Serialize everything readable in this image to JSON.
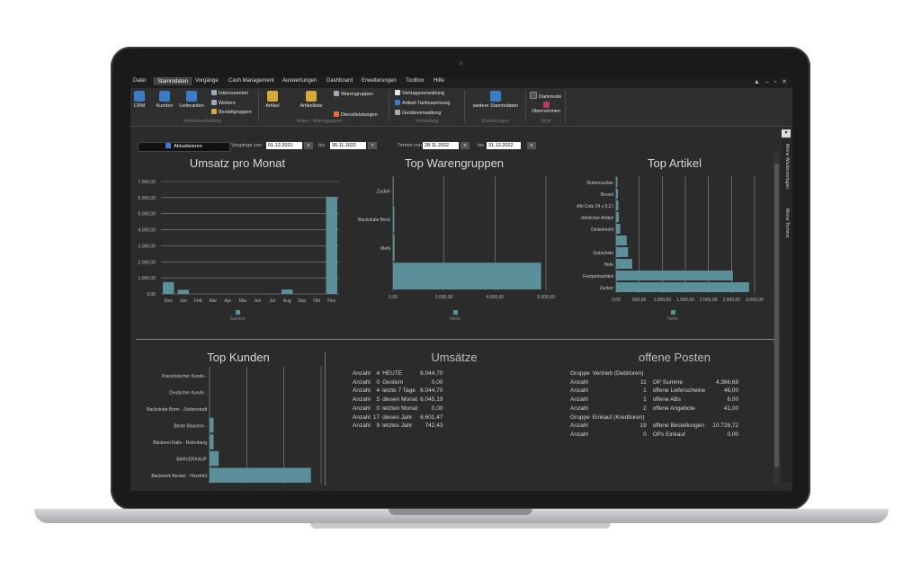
{
  "menu": {
    "items": [
      "Datei",
      "Stammdaten",
      "Vorgänge",
      "Cash Management",
      "Auswertungen",
      "Dashboard",
      "Erweiterungen",
      "Toolbox",
      "Hilfe"
    ],
    "active": "Stammdaten"
  },
  "ribbon": {
    "crm": "CRM",
    "kunden": "Kunden",
    "lieferanten": "Lieferanten",
    "interessenten": "Interessenten",
    "weitere": "Weitere",
    "bestellgruppen": "Bestellgruppen",
    "artikel": "Artikel",
    "artikelliste": "Artikelliste",
    "warengruppen": "Warengruppen",
    "dienstleistungen": "Dienstleistungen",
    "vertragsverwaltung": "Vertragsverwaltung",
    "artikel_tarifzuweisung": "Artikel-Tarifzuweisung",
    "geraeteverwaltung": "Geräteverwaltung",
    "weitere_stammdaten": "weitere Stammdaten",
    "darkmode": "Darkmode",
    "uebernehmen": "Übernehmen",
    "groups": {
      "adressbearbeitung": "Adressbearbeitung",
      "artikel_warengruppen": "Artikel / Warengruppen",
      "verwaltung": "Verwaltung",
      "einstellungen": "Einstellungen",
      "style": "Style"
    }
  },
  "toolbar": {
    "refresh": "Aktualisieren",
    "vorgaenge_von_label": "Vorgänge von",
    "vorgaenge_von": "01.12.2021",
    "bis1_label": "bis",
    "vorgaenge_bis": "30.11.2022",
    "termin_von_label": "Termin von",
    "termin_von": "28.11.2022",
    "bis2_label": "bis",
    "termin_bis": "31.12.2022"
  },
  "side_panel": {
    "tab1": "Meine Wiedervorlagen",
    "tab2": "Meine Termine"
  },
  "chart_data": [
    {
      "type": "bar",
      "title": "Umsatz pro Monat",
      "categories": [
        "Dez",
        "Jan",
        "Feb",
        "Mar",
        "Apr",
        "Mai",
        "Jun",
        "Jul",
        "Aug",
        "Sep",
        "Okt",
        "Nov"
      ],
      "series": [
        {
          "name": "Summe",
          "values": [
            740,
            260,
            0,
            0,
            0,
            0,
            0,
            15,
            280,
            0,
            0,
            6045
          ]
        }
      ],
      "yticks": [
        "0,00",
        "1.000,00",
        "2.000,00",
        "3.000,00",
        "4.000,00",
        "5.000,00",
        "6.000,00",
        "7.000,00"
      ],
      "ylim": [
        0,
        7000
      ],
      "grid": true,
      "legend": "bottom"
    },
    {
      "type": "bar",
      "orientation": "horizontal",
      "title": "Top Warengruppen",
      "categories": [
        "Zucker",
        "Backstube Beck",
        "Mehl",
        ""
      ],
      "series": [
        {
          "name": "Netto",
          "values": [
            30,
            60,
            70,
            6780
          ]
        }
      ],
      "xticks": [
        "0,00",
        "2.000,00",
        "4.000,00",
        "6.000,00"
      ],
      "xlim": [
        0,
        7000
      ],
      "grid": true,
      "legend": "bottom"
    },
    {
      "type": "bar",
      "orientation": "horizontal",
      "title": "Top Artikel",
      "categories": [
        "Rübenzucker",
        "Brezel",
        "Afri Cola 24 x 0,2 l",
        "Jährlicher Artikel",
        "Dinkelmehl",
        "",
        "Gutschein",
        "Hefe",
        "Festpreisartikel",
        "Zucker"
      ],
      "series": [
        {
          "name": "Netto",
          "values": [
            30,
            40,
            50,
            60,
            90,
            230,
            260,
            350,
            2530,
            2880
          ]
        }
      ],
      "xticks": [
        "0,00",
        "500,00",
        "1.000,00",
        "1.500,00",
        "2.000,00",
        "2.500,00",
        "3.000,00"
      ],
      "xlim": [
        0,
        3000
      ],
      "grid": true,
      "legend": "bottom"
    },
    {
      "type": "bar",
      "orientation": "horizontal",
      "title": "Top Kunden",
      "categories": [
        "Französischer Kunde -",
        "Deutscher Kunde -",
        "Backstube Bomi - Zahlenstadt",
        "Beste Bäckerei -",
        "Bäckerei Kalle - Rotenberg",
        "BARVERKAUF",
        "Backwerk Becker - Herzfeld"
      ],
      "series": [
        {
          "values": [
            0,
            0,
            0,
            40,
            40,
            90,
            1000
          ]
        }
      ],
      "xlim": [
        0,
        1100
      ],
      "grid": true
    }
  ],
  "umsaetze": {
    "title": "Umsätze",
    "rows": [
      {
        "label": "Anzahl",
        "count": "4",
        "period": "HEUTE",
        "value": "6.044,70"
      },
      {
        "label": "Anzahl",
        "count": "0",
        "period": "Gestern",
        "value": "0,00"
      },
      {
        "label": "Anzahl",
        "count": "4",
        "period": "letzte 7 Tage",
        "value": "6.044,70"
      },
      {
        "label": "Anzahl",
        "count": "5",
        "period": "diesen Monat",
        "value": "6.045,19"
      },
      {
        "label": "Anzahl",
        "count": "0",
        "period": "letzten Monat",
        "value": "0,00"
      },
      {
        "label": "Anzahl",
        "count": "17",
        "period": "dieses Jahr",
        "value": "6.601,47"
      },
      {
        "label": "Anzahl",
        "count": "9",
        "period": "letztes Jahr",
        "value": "742,43"
      }
    ]
  },
  "offene_posten": {
    "title": "offene Posten",
    "rows": [
      {
        "a": "Gruppe",
        "b": "Vertrieb (Debitoren)",
        "c": "",
        "d": ""
      },
      {
        "a": "Anzahl",
        "b": "11",
        "c": "OP Summe",
        "d": "4.366,68"
      },
      {
        "a": "Anzahl",
        "b": "1",
        "c": "offene Lieferscheine",
        "d": "46,00"
      },
      {
        "a": "Anzahl",
        "b": "1",
        "c": "offene ABs",
        "d": "6,00"
      },
      {
        "a": "Anzahl",
        "b": "2",
        "c": "offene Angebote",
        "d": "41,00"
      },
      {
        "a": "Gruppe",
        "b": "Einkauf (Kreditoren)",
        "c": "",
        "d": ""
      },
      {
        "a": "Anzahl",
        "b": "19",
        "c": "offene Bestellungen",
        "d": "10.726,72"
      },
      {
        "a": "Anzahl",
        "b": "0",
        "c": "OPs Einkauf",
        "d": "0,00"
      }
    ]
  },
  "colors": {
    "bar": "#5b8f99",
    "background": "#2b2b2b",
    "grid": "#8a8a8a"
  }
}
